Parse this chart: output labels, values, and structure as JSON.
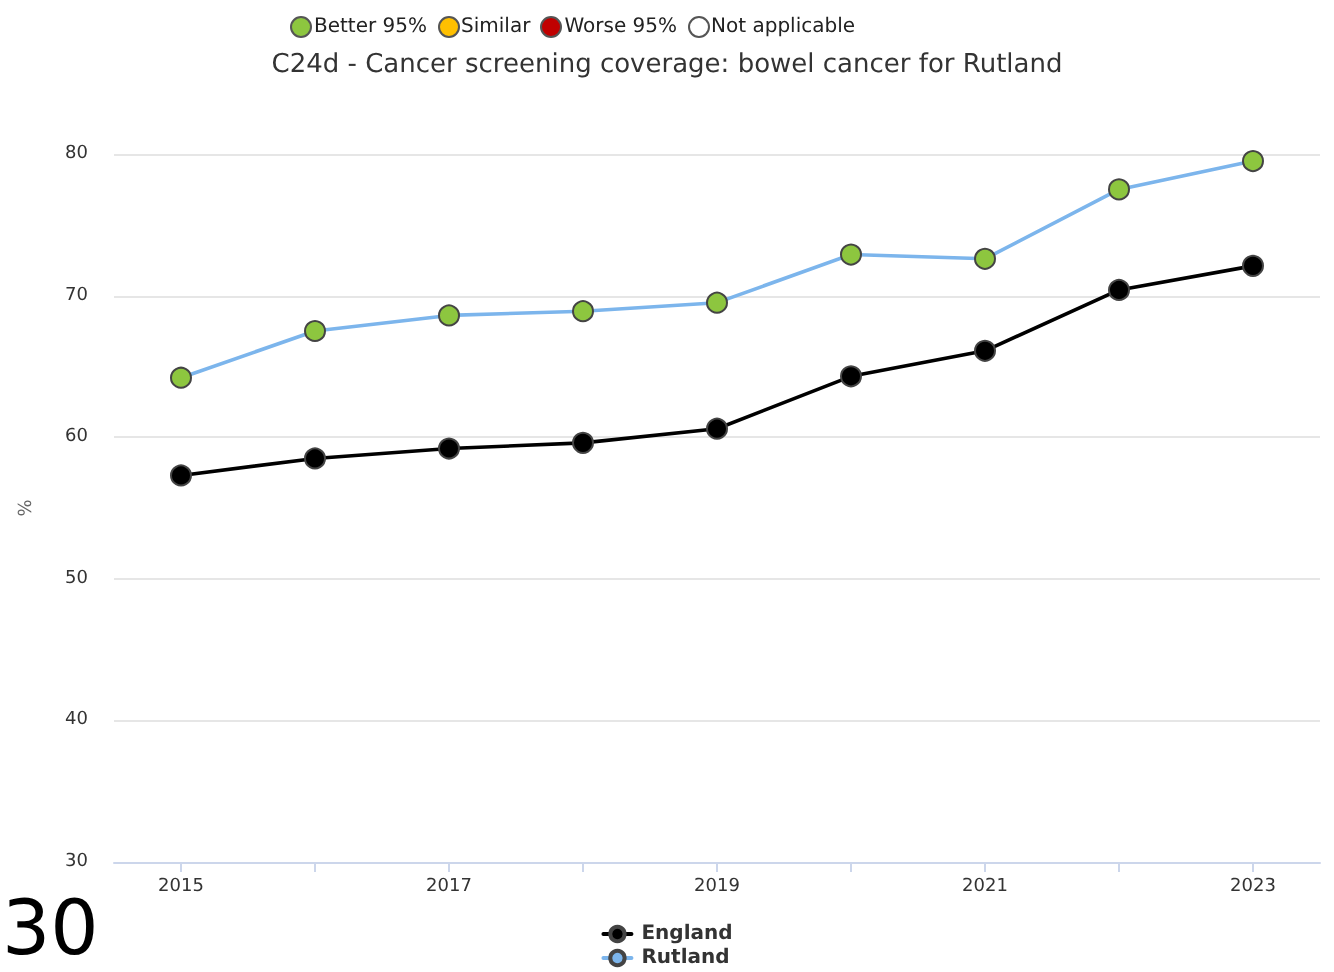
{
  "chart_data": [
    {
      "type": "other",
      "categories": [
        "Better 95%",
        "Similar",
        "Worse 95%",
        "Not applicable"
      ],
      "colors": [
        "#8dc63f",
        "#ffc000",
        "#c00000",
        "#ffffff"
      ]
    },
    {
      "type": "line",
      "title": "C24d - Cancer screening coverage: bowel cancer for Rutland",
      "ylabel": "%",
      "annotations": [
        "30"
      ],
      "x": [
        2015,
        2016,
        2017,
        2018,
        2019,
        2020,
        2021,
        2022,
        2023
      ],
      "series": [
        {
          "name": "England",
          "color": "#000000",
          "values": [
            57.3,
            58.5,
            59.2,
            59.6,
            60.6,
            64.3,
            66.1,
            70.4,
            72.1
          ]
        },
        {
          "name": "Rutland",
          "color": "#7cb5ec",
          "colors": [
            "#8dc63f",
            "#8dc63f",
            "#8dc63f",
            "#8dc63f",
            "#8dc63f",
            "#8dc63f",
            "#8dc63f",
            "#8dc63f",
            "#8dc63f"
          ],
          "values": [
            64.2,
            67.5,
            68.6,
            68.9,
            69.5,
            72.9,
            72.6,
            77.5,
            79.5
          ]
        }
      ],
      "xlim": [
        2014.5,
        2023.5
      ],
      "xticks": [
        2015,
        {
          "value": 2016,
          "label": null
        },
        2017,
        {
          "value": 2018,
          "label": null
        },
        2019,
        {
          "value": 2020,
          "label": null
        },
        2021,
        {
          "value": 2022,
          "label": null
        },
        2023
      ],
      "ylim": [
        30,
        80
      ],
      "yticks": [
        30,
        40,
        50,
        60,
        70,
        80
      ],
      "grid": "y",
      "legend": "bottom",
      "marker": "circle"
    }
  ]
}
